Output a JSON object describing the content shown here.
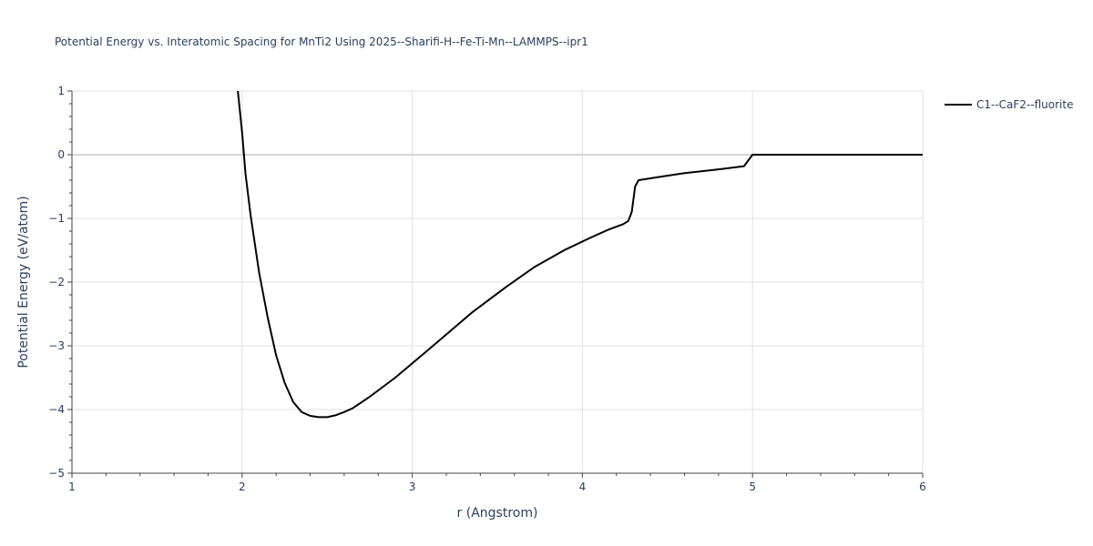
{
  "chart_data": {
    "type": "line",
    "title": "Potential Energy vs. Interatomic Spacing for MnTi2 Using 2025--Sharifi-H--Fe-Ti-Mn--LAMMPS--ipr1",
    "xlabel": "r (Angstrom)",
    "ylabel": "Potential Energy (eV/atom)",
    "xlim": [
      1,
      6
    ],
    "ylim": [
      -5,
      1
    ],
    "xticks": [
      1,
      2,
      3,
      4,
      5,
      6
    ],
    "xtick_labels": [
      "1",
      "2",
      "3",
      "4",
      "5",
      "6"
    ],
    "yticks": [
      1,
      0,
      -1,
      -2,
      -3,
      -4,
      -5
    ],
    "ytick_labels": [
      "1",
      "0",
      "−1",
      "−2",
      "−3",
      "−4",
      "−5"
    ],
    "grid": true,
    "legend_position": "top-right",
    "series": [
      {
        "name": "C1--CaF2--fluorite",
        "color": "#000000",
        "x": [
          1.975,
          2.0,
          2.02,
          2.05,
          2.1,
          2.15,
          2.2,
          2.25,
          2.3,
          2.35,
          2.4,
          2.45,
          2.5,
          2.55,
          2.6,
          2.65,
          2.75,
          2.9,
          3.1,
          3.35,
          3.55,
          3.72,
          3.9,
          4.05,
          4.15,
          4.24,
          4.27,
          4.29,
          4.31,
          4.33,
          4.45,
          4.6,
          4.8,
          4.95,
          5.0,
          5.5,
          6.0
        ],
        "y": [
          1.0,
          0.35,
          -0.3,
          -0.95,
          -1.85,
          -2.55,
          -3.15,
          -3.58,
          -3.88,
          -4.04,
          -4.1,
          -4.12,
          -4.12,
          -4.09,
          -4.04,
          -3.98,
          -3.8,
          -3.5,
          -3.05,
          -2.48,
          -2.08,
          -1.76,
          -1.49,
          -1.3,
          -1.18,
          -1.09,
          -1.04,
          -0.9,
          -0.5,
          -0.4,
          -0.35,
          -0.29,
          -0.23,
          -0.18,
          0.0,
          0.0,
          0.0
        ]
      }
    ]
  }
}
